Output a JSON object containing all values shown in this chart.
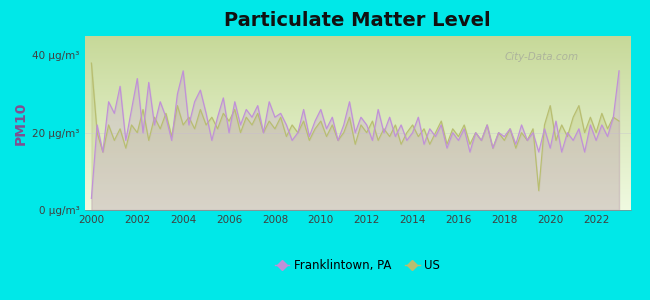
{
  "title": "Particulate Matter Level",
  "ylabel": "PM10",
  "background_color": "#00e8e8",
  "plot_bg_top": "#c8d890",
  "plot_bg_bottom": "#f0f8e0",
  "title_fontsize": 14,
  "ylabel_fontsize": 10,
  "ylim": [
    0,
    45
  ],
  "yticks": [
    0,
    20,
    40
  ],
  "ytick_labels": [
    "0 μg/m³",
    "20 μg/m³",
    "40 μg/m³"
  ],
  "xmin": 1999.7,
  "xmax": 2023.5,
  "franklintown_color": "#c090d8",
  "us_color": "#b8be70",
  "ylabel_color": "#805090",
  "tick_color": "#404040",
  "legend_franklintown": "Franklintown, PA",
  "legend_us": "US",
  "watermark": "City-Data.com",
  "franklintown_x": [
    2000.0,
    2000.25,
    2000.5,
    2000.75,
    2001.0,
    2001.25,
    2001.5,
    2001.75,
    2002.0,
    2002.25,
    2002.5,
    2002.75,
    2003.0,
    2003.25,
    2003.5,
    2003.75,
    2004.0,
    2004.25,
    2004.5,
    2004.75,
    2005.0,
    2005.25,
    2005.5,
    2005.75,
    2006.0,
    2006.25,
    2006.5,
    2006.75,
    2007.0,
    2007.25,
    2007.5,
    2007.75,
    2008.0,
    2008.25,
    2008.5,
    2008.75,
    2009.0,
    2009.25,
    2009.5,
    2009.75,
    2010.0,
    2010.25,
    2010.5,
    2010.75,
    2011.0,
    2011.25,
    2011.5,
    2011.75,
    2012.0,
    2012.25,
    2012.5,
    2012.75,
    2013.0,
    2013.25,
    2013.5,
    2013.75,
    2014.0,
    2014.25,
    2014.5,
    2014.75,
    2015.0,
    2015.25,
    2015.5,
    2015.75,
    2016.0,
    2016.25,
    2016.5,
    2016.75,
    2017.0,
    2017.25,
    2017.5,
    2017.75,
    2018.0,
    2018.25,
    2018.5,
    2018.75,
    2019.0,
    2019.25,
    2019.5,
    2019.75,
    2020.0,
    2020.25,
    2020.5,
    2020.75,
    2021.0,
    2021.25,
    2021.5,
    2021.75,
    2022.0,
    2022.25,
    2022.5,
    2022.75,
    2023.0
  ],
  "franklintown_y": [
    3,
    22,
    15,
    28,
    25,
    32,
    18,
    26,
    34,
    20,
    33,
    22,
    28,
    24,
    18,
    30,
    36,
    22,
    28,
    31,
    25,
    18,
    24,
    29,
    20,
    28,
    22,
    26,
    24,
    27,
    20,
    28,
    24,
    25,
    22,
    18,
    20,
    26,
    19,
    23,
    26,
    21,
    24,
    18,
    22,
    28,
    20,
    24,
    22,
    18,
    26,
    20,
    24,
    19,
    22,
    18,
    20,
    24,
    17,
    21,
    19,
    22,
    16,
    20,
    18,
    21,
    15,
    20,
    18,
    22,
    16,
    20,
    19,
    21,
    17,
    22,
    18,
    20,
    15,
    21,
    16,
    23,
    15,
    20,
    18,
    21,
    15,
    22,
    18,
    22,
    19,
    24,
    36
  ],
  "us_x": [
    2000.0,
    2000.25,
    2000.5,
    2000.75,
    2001.0,
    2001.25,
    2001.5,
    2001.75,
    2002.0,
    2002.25,
    2002.5,
    2002.75,
    2003.0,
    2003.25,
    2003.5,
    2003.75,
    2004.0,
    2004.25,
    2004.5,
    2004.75,
    2005.0,
    2005.25,
    2005.5,
    2005.75,
    2006.0,
    2006.25,
    2006.5,
    2006.75,
    2007.0,
    2007.25,
    2007.5,
    2007.75,
    2008.0,
    2008.25,
    2008.5,
    2008.75,
    2009.0,
    2009.25,
    2009.5,
    2009.75,
    2010.0,
    2010.25,
    2010.5,
    2010.75,
    2011.0,
    2011.25,
    2011.5,
    2011.75,
    2012.0,
    2012.25,
    2012.5,
    2012.75,
    2013.0,
    2013.25,
    2013.5,
    2013.75,
    2014.0,
    2014.25,
    2014.5,
    2014.75,
    2015.0,
    2015.25,
    2015.5,
    2015.75,
    2016.0,
    2016.25,
    2016.5,
    2016.75,
    2017.0,
    2017.25,
    2017.5,
    2017.75,
    2018.0,
    2018.25,
    2018.5,
    2018.75,
    2019.0,
    2019.25,
    2019.5,
    2019.75,
    2020.0,
    2020.25,
    2020.5,
    2020.75,
    2021.0,
    2021.25,
    2021.5,
    2021.75,
    2022.0,
    2022.25,
    2022.5,
    2022.75,
    2023.0
  ],
  "us_y": [
    38,
    20,
    15,
    22,
    18,
    21,
    16,
    22,
    20,
    26,
    18,
    24,
    21,
    25,
    19,
    27,
    22,
    24,
    21,
    26,
    22,
    24,
    21,
    25,
    23,
    26,
    20,
    24,
    22,
    25,
    20,
    23,
    21,
    24,
    19,
    22,
    20,
    23,
    18,
    21,
    23,
    19,
    22,
    18,
    20,
    24,
    17,
    22,
    20,
    23,
    18,
    21,
    19,
    22,
    17,
    20,
    22,
    19,
    21,
    17,
    20,
    23,
    17,
    21,
    19,
    22,
    17,
    20,
    18,
    22,
    16,
    20,
    18,
    21,
    16,
    20,
    18,
    21,
    5,
    22,
    27,
    18,
    22,
    19,
    24,
    27,
    20,
    24,
    20,
    25,
    21,
    24,
    23
  ]
}
